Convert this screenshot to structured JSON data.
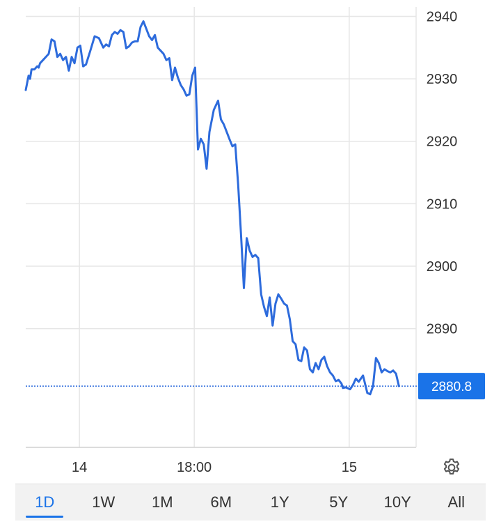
{
  "chart_data": {
    "type": "line",
    "series": [
      {
        "color": "#2d6bdc",
        "values": [
          [
            0,
            2928.2
          ],
          [
            0.1,
            2930.5
          ],
          [
            0.15,
            2930.0
          ],
          [
            0.2,
            2931.5
          ],
          [
            0.3,
            2931.5
          ],
          [
            0.4,
            2932.0
          ],
          [
            0.45,
            2931.8
          ],
          [
            0.5,
            2932.5
          ],
          [
            0.6,
            2933.0
          ],
          [
            0.7,
            2933.5
          ],
          [
            0.8,
            2934.0
          ],
          [
            0.9,
            2936.3
          ],
          [
            1.0,
            2936.0
          ],
          [
            1.1,
            2933.5
          ],
          [
            1.2,
            2934.0
          ],
          [
            1.3,
            2933.0
          ],
          [
            1.4,
            2933.5
          ],
          [
            1.5,
            2931.3
          ],
          [
            1.6,
            2933.5
          ],
          [
            1.7,
            2932.5
          ],
          [
            1.8,
            2935.0
          ],
          [
            1.9,
            2935.3
          ],
          [
            2.0,
            2932.0
          ],
          [
            2.1,
            2932.3
          ],
          [
            2.25,
            2934.5
          ],
          [
            2.4,
            2936.8
          ],
          [
            2.55,
            2936.5
          ],
          [
            2.7,
            2935.0
          ],
          [
            2.8,
            2935.5
          ],
          [
            2.9,
            2935.2
          ],
          [
            3.0,
            2937.0
          ],
          [
            3.1,
            2937.5
          ],
          [
            3.2,
            2937.2
          ],
          [
            3.3,
            2937.8
          ],
          [
            3.4,
            2937.5
          ],
          [
            3.5,
            2934.9
          ],
          [
            3.6,
            2935.2
          ],
          [
            3.7,
            2935.8
          ],
          [
            3.8,
            2936.0
          ],
          [
            3.9,
            2936.0
          ],
          [
            4.0,
            2938.3
          ],
          [
            4.1,
            2939.2
          ],
          [
            4.2,
            2938.0
          ],
          [
            4.3,
            2936.8
          ],
          [
            4.4,
            2936.2
          ],
          [
            4.5,
            2937.0
          ],
          [
            4.6,
            2935.0
          ],
          [
            4.7,
            2934.5
          ],
          [
            4.8,
            2934.0
          ],
          [
            4.9,
            2933.0
          ],
          [
            5.0,
            2933.3
          ],
          [
            5.1,
            2929.8
          ],
          [
            5.2,
            2931.8
          ],
          [
            5.3,
            2930.2
          ],
          [
            5.4,
            2929.0
          ],
          [
            5.5,
            2928.3
          ],
          [
            5.6,
            2927.3
          ],
          [
            5.7,
            2927.5
          ],
          [
            5.8,
            2930.5
          ],
          [
            5.9,
            2931.8
          ],
          [
            6.0,
            2918.7
          ],
          [
            6.1,
            2920.4
          ],
          [
            6.2,
            2919.5
          ],
          [
            6.3,
            2915.6
          ],
          [
            6.4,
            2921.5
          ],
          [
            6.55,
            2925.0
          ],
          [
            6.7,
            2926.5
          ],
          [
            6.8,
            2923.5
          ],
          [
            6.9,
            2922.7
          ],
          [
            7.0,
            2921.5
          ],
          [
            7.1,
            2920.3
          ],
          [
            7.2,
            2919.2
          ],
          [
            7.3,
            2919.5
          ],
          [
            7.4,
            2913.0
          ],
          [
            7.5,
            2905.0
          ],
          [
            7.6,
            2896.5
          ],
          [
            7.7,
            2904.5
          ],
          [
            7.8,
            2902.5
          ],
          [
            7.9,
            2901.5
          ],
          [
            8.0,
            2901.8
          ],
          [
            8.1,
            2901.3
          ],
          [
            8.2,
            2895.5
          ],
          [
            8.3,
            2893.5
          ],
          [
            8.4,
            2892.0
          ],
          [
            8.5,
            2895.0
          ],
          [
            8.6,
            2890.5
          ],
          [
            8.7,
            2894.0
          ],
          [
            8.8,
            2895.5
          ],
          [
            8.9,
            2894.8
          ],
          [
            9.0,
            2894.0
          ],
          [
            9.1,
            2893.7
          ],
          [
            9.2,
            2891.5
          ],
          [
            9.3,
            2888.0
          ],
          [
            9.4,
            2887.5
          ],
          [
            9.5,
            2885.0
          ],
          [
            9.6,
            2884.8
          ],
          [
            9.7,
            2887.0
          ],
          [
            9.8,
            2886.5
          ],
          [
            9.9,
            2883.5
          ],
          [
            10.0,
            2883.0
          ],
          [
            10.1,
            2884.5
          ],
          [
            10.2,
            2883.5
          ],
          [
            10.3,
            2885.0
          ],
          [
            10.4,
            2885.5
          ],
          [
            10.5,
            2884.0
          ],
          [
            10.6,
            2883.0
          ],
          [
            10.7,
            2882.5
          ],
          [
            10.8,
            2881.6
          ],
          [
            10.9,
            2881.8
          ],
          [
            11.0,
            2881.2
          ],
          [
            11.05,
            2880.5
          ],
          [
            11.15,
            2880.6
          ],
          [
            11.3,
            2880.3
          ],
          [
            11.4,
            2881.0
          ],
          [
            11.5,
            2882.0
          ],
          [
            11.6,
            2881.5
          ],
          [
            11.75,
            2882.5
          ],
          [
            11.9,
            2879.7
          ],
          [
            12.0,
            2879.5
          ],
          [
            12.1,
            2880.8
          ],
          [
            12.2,
            2885.3
          ],
          [
            12.3,
            2884.5
          ],
          [
            12.4,
            2883.0
          ],
          [
            12.5,
            2883.5
          ],
          [
            12.6,
            2883.2
          ],
          [
            12.7,
            2883.0
          ],
          [
            12.8,
            2883.3
          ],
          [
            12.9,
            2882.8
          ],
          [
            13.0,
            2880.8
          ]
        ]
      }
    ],
    "yticks": [
      2940,
      2930,
      2920,
      2910,
      2900,
      2890
    ],
    "xticks": [
      {
        "label": "14",
        "x": 1.87
      },
      {
        "label": "18:00",
        "x": 5.87
      },
      {
        "label": "15",
        "x": 11.27
      }
    ],
    "xlim": [
      0,
      13.6
    ],
    "ylim": [
      2871.0,
      2941.5
    ],
    "current_price_label": "2880.8",
    "current_price_value": 2880.8,
    "accent_color": "#2d6bdc",
    "tag_color": "#1a73e8"
  },
  "icons": {
    "settings": "gear-icon"
  },
  "range_tabs": [
    {
      "label": "1D",
      "active": true
    },
    {
      "label": "1W",
      "active": false
    },
    {
      "label": "1M",
      "active": false
    },
    {
      "label": "6M",
      "active": false
    },
    {
      "label": "1Y",
      "active": false
    },
    {
      "label": "5Y",
      "active": false
    },
    {
      "label": "10Y",
      "active": false
    },
    {
      "label": "All",
      "active": false
    }
  ]
}
